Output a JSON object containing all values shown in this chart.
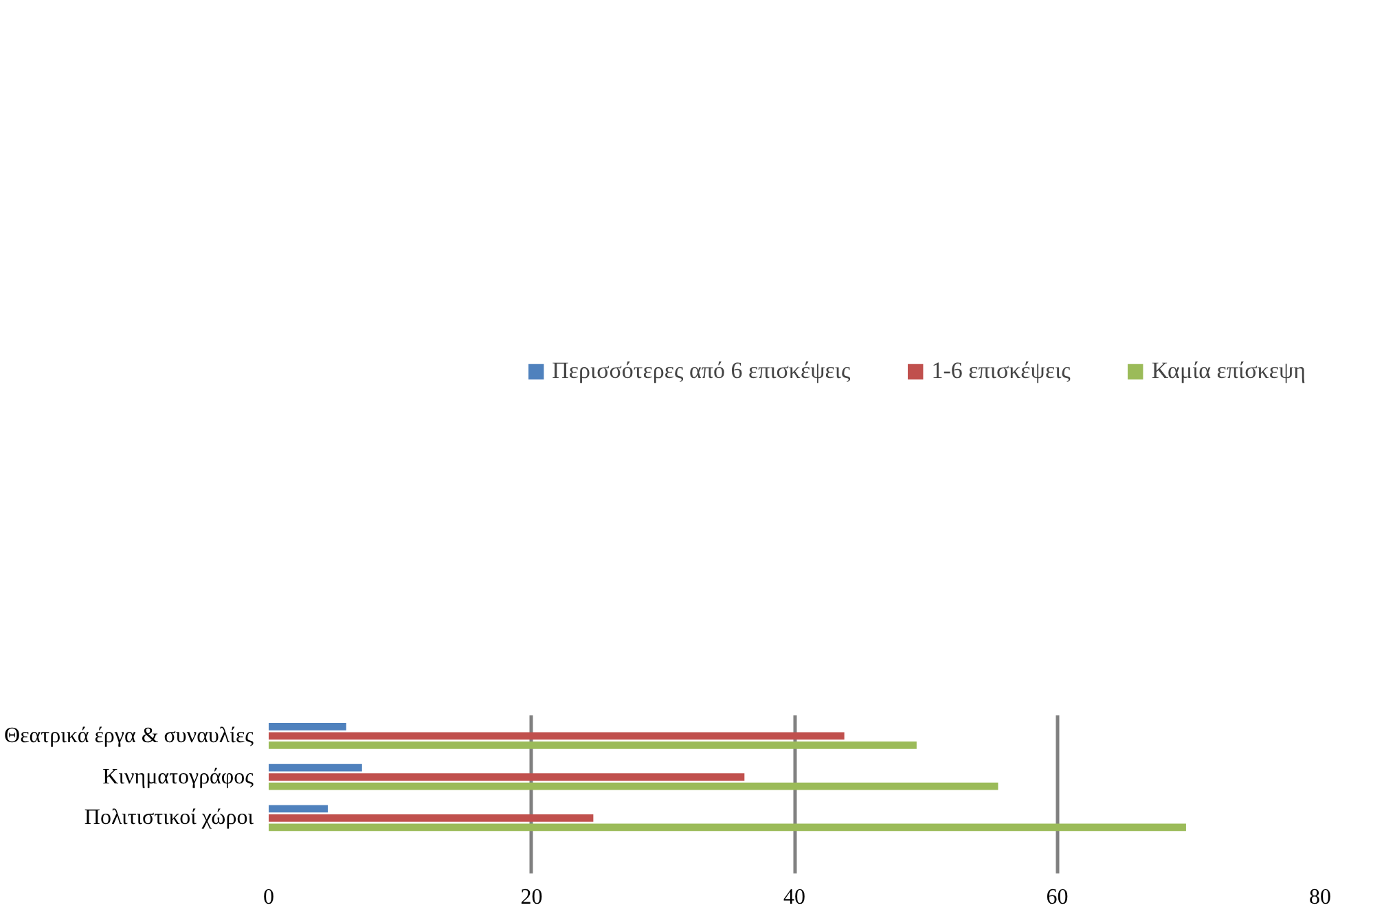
{
  "chart_data": {
    "type": "bar",
    "orientation": "horizontal",
    "categories": [
      "Θεατρικά έργα & συναυλίες",
      "Κινηματογράφος",
      "Πολιτιστικοί χώροι"
    ],
    "series": [
      {
        "name": "Περισσότερες από 6 επισκέψεις",
        "color": "#4f81bd",
        "values": [
          5.9,
          7.1,
          4.5
        ]
      },
      {
        "name": "1-6 επισκέψεις",
        "color": "#c0504d",
        "values": [
          43.8,
          36.2,
          24.7
        ]
      },
      {
        "name": "Καμία επίσκεψη",
        "color": "#9bbb59",
        "values": [
          49.3,
          55.5,
          69.8
        ]
      }
    ],
    "xlim": [
      0,
      80
    ],
    "xticks": [
      0,
      20,
      40,
      60,
      80
    ],
    "grid": "x",
    "legend": "top"
  }
}
